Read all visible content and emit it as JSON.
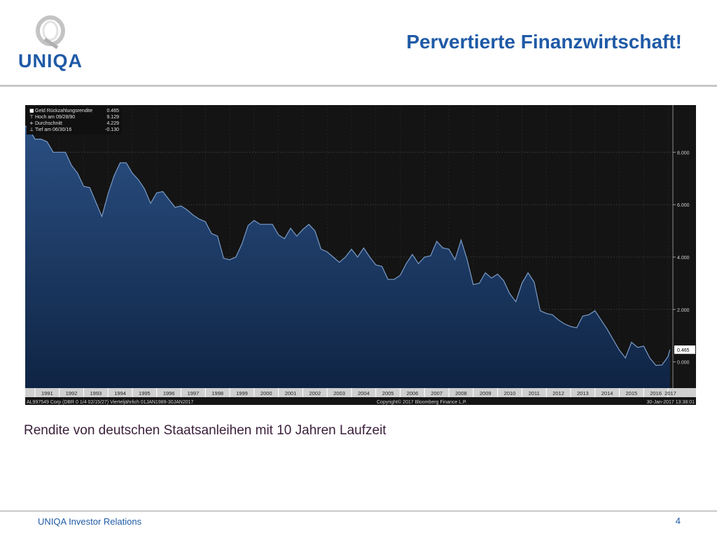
{
  "brand": {
    "logo_text": "UNIQA",
    "color": "#1f5aa6"
  },
  "slide": {
    "title": "Pervertierte Finanzwirtschaft!",
    "caption": "Rendite von deutschen Staatsanleihen mit 10 Jahren Laufzeit",
    "footer_left": "UNIQA Investor Relations",
    "page_number": "4"
  },
  "chart_data": {
    "type": "area",
    "background": "#141414",
    "fill_color": "#1c3a66",
    "line_color": "#7a9cc8",
    "legend": {
      "placement": "top-left",
      "items": [
        {
          "label": "Geld Rückzahlungsrendite",
          "value": "0.465",
          "icon": "square-icon"
        },
        {
          "label": "Hoch am 09/28/90",
          "value": "9.129",
          "icon": "up-tick-icon"
        },
        {
          "label": "Durchschnitt",
          "value": "4.229",
          "icon": "plus-icon"
        },
        {
          "label": "Tief am 06/30/16",
          "value": "-0.130",
          "icon": "down-tick-icon"
        }
      ]
    },
    "ylim": [
      -1.0,
      9.8
    ],
    "xlim": [
      1990.6,
      2017.2
    ],
    "y_ticks": [
      "0.000",
      "2.000",
      "4.000",
      "6.000",
      "8.000"
    ],
    "x_ticks": [
      "1991",
      "1992",
      "1993",
      "1994",
      "1995",
      "1996",
      "1997",
      "1998",
      "1999",
      "2000",
      "2001",
      "2002",
      "2003",
      "2004",
      "2005",
      "2006",
      "2007",
      "2008",
      "2009",
      "2010",
      "2011",
      "2012",
      "2013",
      "2014",
      "2015",
      "2016",
      "2017"
    ],
    "last_value_label": "0.465",
    "footer_left": "AL997549 Corp (DBR 0 1/4 02/15/27) Vierteljährlich 01JAN1989-30JAN2017",
    "footer_center": "Copyright© 2017 Bloomberg Finance L.P.",
    "footer_right": "30-Jan-2017 13:38:01",
    "x": [
      1990.6,
      1990.75,
      1991.0,
      1991.25,
      1991.5,
      1991.75,
      1992.0,
      1992.25,
      1992.5,
      1992.75,
      1993.0,
      1993.25,
      1993.5,
      1993.75,
      1994.0,
      1994.25,
      1994.5,
      1994.75,
      1995.0,
      1995.25,
      1995.5,
      1995.75,
      1996.0,
      1996.25,
      1996.5,
      1996.75,
      1997.0,
      1997.25,
      1997.5,
      1997.75,
      1998.0,
      1998.25,
      1998.5,
      1998.75,
      1999.0,
      1999.25,
      1999.5,
      1999.75,
      2000.0,
      2000.25,
      2000.5,
      2000.75,
      2001.0,
      2001.25,
      2001.5,
      2001.75,
      2002.0,
      2002.25,
      2002.5,
      2002.75,
      2003.0,
      2003.25,
      2003.5,
      2003.75,
      2004.0,
      2004.25,
      2004.5,
      2004.75,
      2005.0,
      2005.25,
      2005.5,
      2005.75,
      2006.0,
      2006.25,
      2006.5,
      2006.75,
      2007.0,
      2007.25,
      2007.5,
      2007.75,
      2008.0,
      2008.25,
      2008.5,
      2008.75,
      2009.0,
      2009.25,
      2009.5,
      2009.75,
      2010.0,
      2010.25,
      2010.5,
      2010.75,
      2011.0,
      2011.25,
      2011.5,
      2011.75,
      2012.0,
      2012.25,
      2012.5,
      2012.75,
      2013.0,
      2013.25,
      2013.5,
      2013.75,
      2014.0,
      2014.25,
      2014.5,
      2014.75,
      2015.0,
      2015.25,
      2015.5,
      2015.75,
      2016.0,
      2016.25,
      2016.5,
      2016.75,
      2017.0,
      2017.08
    ],
    "y": [
      9.0,
      8.9,
      8.5,
      8.5,
      8.4,
      8.0,
      8.0,
      8.0,
      7.5,
      7.2,
      6.7,
      6.65,
      6.1,
      5.55,
      6.4,
      7.1,
      7.6,
      7.6,
      7.2,
      6.95,
      6.6,
      6.05,
      6.45,
      6.5,
      6.2,
      5.9,
      5.95,
      5.8,
      5.6,
      5.45,
      5.35,
      4.9,
      4.8,
      3.95,
      3.9,
      4.0,
      4.5,
      5.2,
      5.4,
      5.25,
      5.25,
      5.25,
      4.85,
      4.7,
      5.1,
      4.8,
      5.05,
      5.25,
      5.0,
      4.3,
      4.2,
      4.0,
      3.8,
      4.0,
      4.3,
      4.0,
      4.35,
      4.0,
      3.7,
      3.65,
      3.15,
      3.15,
      3.3,
      3.75,
      4.1,
      3.75,
      4.0,
      4.05,
      4.6,
      4.35,
      4.3,
      3.9,
      4.65,
      3.9,
      2.95,
      3.0,
      3.4,
      3.2,
      3.35,
      3.1,
      2.6,
      2.3,
      3.0,
      3.4,
      3.05,
      1.95,
      1.85,
      1.8,
      1.6,
      1.45,
      1.35,
      1.3,
      1.75,
      1.8,
      1.95,
      1.6,
      1.25,
      0.85,
      0.45,
      0.15,
      0.75,
      0.55,
      0.6,
      0.15,
      -0.13,
      -0.12,
      0.2,
      0.465
    ]
  }
}
